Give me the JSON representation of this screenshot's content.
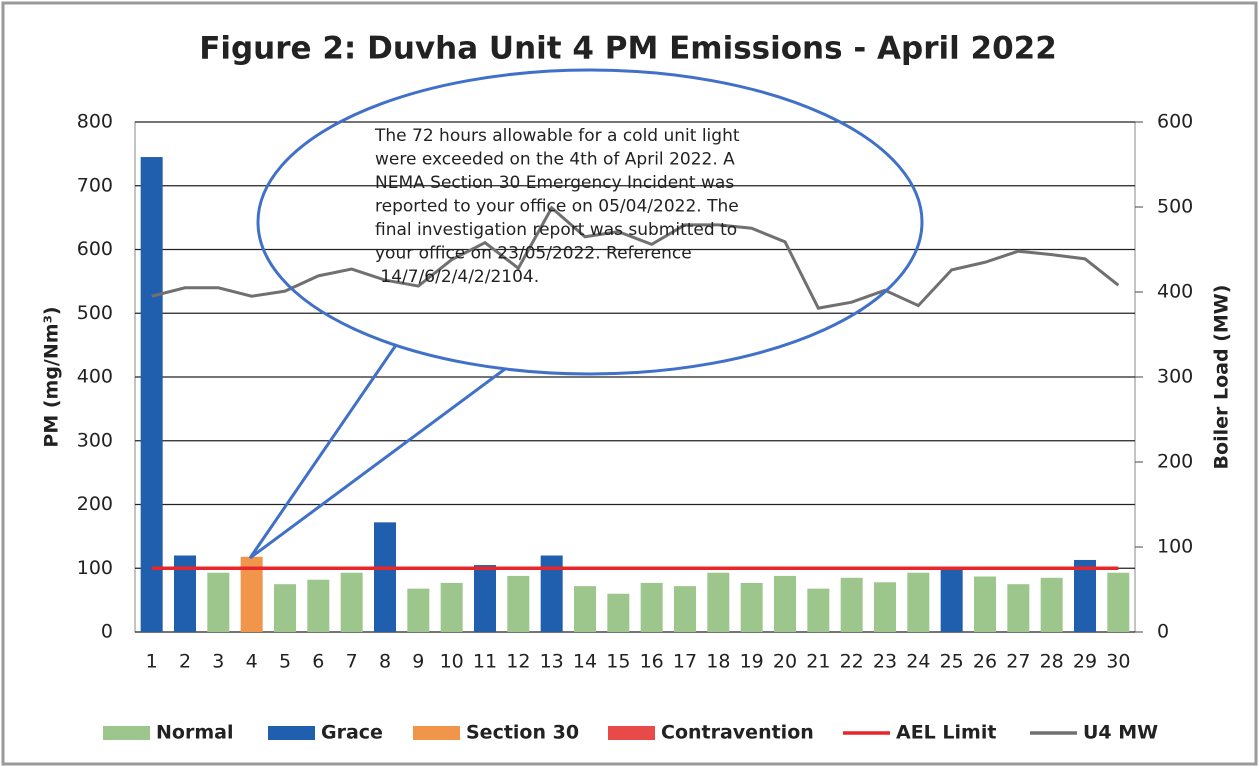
{
  "chart_data": {
    "type": "bar",
    "title": "Figure 2: Duvha Unit 4 PM Emissions -  April 2022",
    "ylabel": "PM (mg/Nm³)",
    "y2label": "Boiler Load (MW)",
    "categories": [
      "1",
      "2",
      "3",
      "4",
      "5",
      "6",
      "7",
      "8",
      "9",
      "10",
      "11",
      "12",
      "13",
      "14",
      "15",
      "16",
      "17",
      "18",
      "19",
      "20",
      "21",
      "22",
      "23",
      "24",
      "25",
      "26",
      "27",
      "28",
      "29",
      "30"
    ],
    "series": [
      {
        "name": "Normal",
        "color": "#9cc68c",
        "values": [
          null,
          null,
          93,
          null,
          75,
          82,
          93,
          null,
          68,
          77,
          null,
          88,
          null,
          72,
          60,
          77,
          72,
          93,
          77,
          88,
          68,
          85,
          78,
          93,
          null,
          87,
          75,
          85,
          null,
          93
        ]
      },
      {
        "name": "Grace",
        "color": "#1f5fae",
        "values": [
          745,
          120,
          null,
          null,
          null,
          null,
          null,
          172,
          null,
          null,
          105,
          null,
          120,
          null,
          null,
          null,
          null,
          null,
          null,
          null,
          null,
          null,
          null,
          null,
          100,
          null,
          null,
          null,
          113,
          null
        ]
      },
      {
        "name": "Section 30",
        "color": "#f0954a",
        "values": [
          null,
          null,
          null,
          118,
          null,
          null,
          null,
          null,
          null,
          null,
          null,
          null,
          null,
          null,
          null,
          null,
          null,
          null,
          null,
          null,
          null,
          null,
          null,
          null,
          null,
          null,
          null,
          null,
          null,
          null
        ]
      },
      {
        "name": "Contravention",
        "color": "#e84a4a",
        "values": [
          null,
          null,
          null,
          null,
          null,
          null,
          null,
          null,
          null,
          null,
          null,
          null,
          null,
          null,
          null,
          null,
          null,
          null,
          null,
          null,
          null,
          null,
          null,
          null,
          null,
          null,
          null,
          null,
          null,
          null
        ]
      },
      {
        "name": "AEL Limit",
        "type": "line",
        "color": "#e8262a",
        "values": [
          100,
          100,
          100,
          100,
          100,
          100,
          100,
          100,
          100,
          100,
          100,
          100,
          100,
          100,
          100,
          100,
          100,
          100,
          100,
          100,
          100,
          100,
          100,
          100,
          100,
          100,
          100,
          100,
          100,
          100
        ]
      },
      {
        "name": "U4 MW",
        "type": "line",
        "axis": "y2",
        "color": "#707070",
        "values": [
          395,
          405,
          405,
          395,
          401,
          419,
          427,
          414,
          407,
          438,
          458,
          428,
          499,
          465,
          471,
          456,
          479,
          479,
          475,
          459,
          381,
          388,
          402,
          384,
          426,
          435,
          448,
          444,
          439,
          408
        ]
      }
    ],
    "ylim": [
      0,
      800
    ],
    "yticks": [
      0,
      100,
      200,
      300,
      400,
      500,
      600,
      700,
      800
    ],
    "y2lim": [
      0,
      600
    ],
    "y2ticks": [
      0,
      100,
      200,
      300,
      400,
      500,
      600
    ],
    "grid": true,
    "legend": "bottom",
    "annotation": [
      "The 72 hours allowable for a cold unit light",
      "were exceeded on the 4th of April 2022. A",
      "NEMA Section 30 Emergency Incident was",
      "reported to your office on 05/04/2022. The",
      "final investigation report was submitted to",
      "your office on 23/05/2022. Reference",
      " 14/7/6/2/4/2/2104."
    ]
  }
}
